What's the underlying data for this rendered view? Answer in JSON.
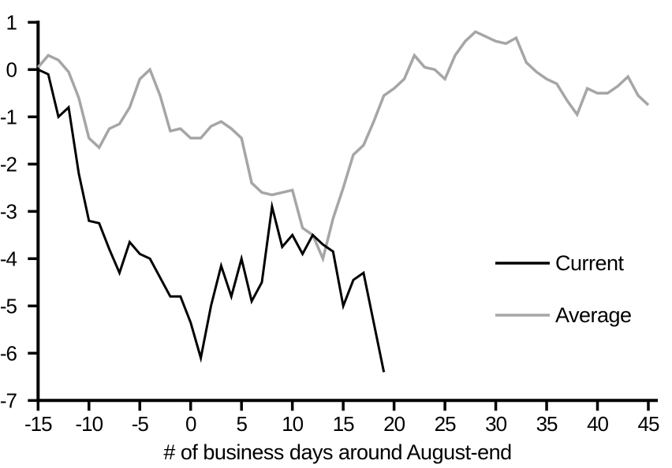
{
  "chart_data": {
    "type": "line",
    "title": "",
    "xlabel": "# of business days around August-end",
    "ylabel": "",
    "xlim": [
      -15,
      45
    ],
    "ylim": [
      -7,
      1
    ],
    "x_ticks": [
      -15,
      -10,
      -5,
      0,
      5,
      10,
      15,
      20,
      25,
      30,
      35,
      40,
      45
    ],
    "y_ticks": [
      1,
      0,
      -1,
      -2,
      -3,
      -4,
      -5,
      -6,
      -7
    ],
    "grid": false,
    "legend_position": "right-middle",
    "legend_entries": [
      {
        "label": "Current",
        "color": "#000000"
      },
      {
        "label": "Average",
        "color": "#a6a6a6"
      }
    ],
    "series": [
      {
        "name": "Current",
        "color": "#000000",
        "stroke_width": 3,
        "x": [
          -15,
          -14,
          -13,
          -12,
          -11,
          -10,
          -9,
          -8,
          -7,
          -6,
          -5,
          -4,
          -3,
          -2,
          -1,
          0,
          1,
          2,
          3,
          4,
          5,
          6,
          7,
          8,
          9,
          10,
          11,
          12,
          13,
          14,
          15,
          16,
          17,
          18,
          19
        ],
        "values": [
          0,
          -0.1,
          -1,
          -0.8,
          -2.2,
          -3.2,
          -3.25,
          -3.8,
          -4.3,
          -3.65,
          -3.9,
          -4,
          -4.4,
          -4.8,
          -4.8,
          -5.35,
          -6.1,
          -5,
          -4.15,
          -4.8,
          -4,
          -4.9,
          -4.5,
          -2.9,
          -3.75,
          -3.5,
          -3.9,
          -3.5,
          -3.7,
          -3.85,
          -5,
          -4.45,
          -4.3,
          -5.35,
          -6.4
        ]
      },
      {
        "name": "Average",
        "color": "#a6a6a6",
        "stroke_width": 3.5,
        "x": [
          -15,
          -14,
          -13,
          -12,
          -11,
          -10,
          -9,
          -8,
          -7,
          -6,
          -5,
          -4,
          -3,
          -2,
          -1,
          0,
          1,
          2,
          3,
          4,
          5,
          6,
          7,
          8,
          9,
          10,
          11,
          12,
          13,
          14,
          15,
          16,
          17,
          18,
          19,
          20,
          21,
          22,
          23,
          24,
          25,
          26,
          27,
          28,
          29,
          30,
          31,
          32,
          33,
          34,
          35,
          36,
          37,
          38,
          39,
          40,
          41,
          42,
          43,
          44,
          45
        ],
        "values": [
          0.05,
          0.3,
          0.2,
          -0.05,
          -0.6,
          -1.45,
          -1.65,
          -1.25,
          -1.15,
          -0.8,
          -0.2,
          0,
          -0.55,
          -1.3,
          -1.25,
          -1.45,
          -1.45,
          -1.2,
          -1.1,
          -1.25,
          -1.45,
          -2.4,
          -2.6,
          -2.65,
          -2.6,
          -2.55,
          -3.35,
          -3.5,
          -4,
          -3.15,
          -2.5,
          -1.8,
          -1.6,
          -1.1,
          -0.55,
          -0.4,
          -0.2,
          0.3,
          0.05,
          0,
          -0.2,
          0.3,
          0.6,
          0.8,
          0.7,
          0.6,
          0.55,
          0.67,
          0.15,
          -0.05,
          -0.2,
          -0.3,
          -0.65,
          -0.95,
          -0.4,
          -0.5,
          -0.5,
          -0.35,
          -0.15,
          -0.55,
          -0.75
        ]
      }
    ]
  }
}
